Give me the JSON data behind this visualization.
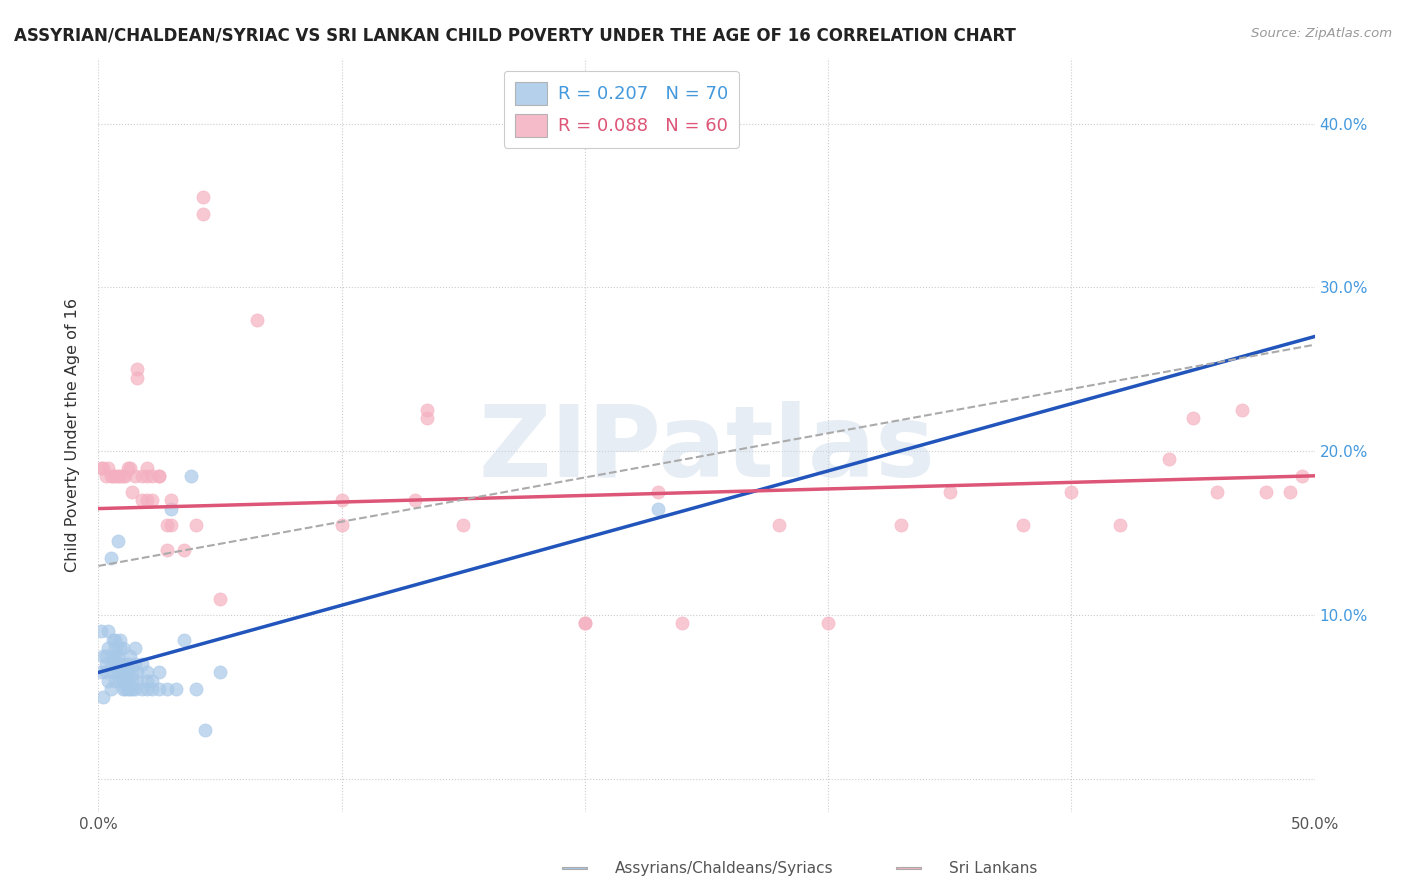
{
  "title": "ASSYRIAN/CHALDEAN/SYRIAC VS SRI LANKAN CHILD POVERTY UNDER THE AGE OF 16 CORRELATION CHART",
  "source": "Source: ZipAtlas.com",
  "ylabel": "Child Poverty Under the Age of 16",
  "xlim": [
    0.0,
    0.5
  ],
  "ylim": [
    -0.02,
    0.44
  ],
  "yticks": [
    0.0,
    0.1,
    0.2,
    0.3,
    0.4
  ],
  "ytick_labels": [
    "",
    "10.0%",
    "20.0%",
    "30.0%",
    "40.0%"
  ],
  "xticks": [
    0.0,
    0.1,
    0.2,
    0.3,
    0.4,
    0.5
  ],
  "xtick_labels": [
    "0.0%",
    "",
    "",
    "",
    "",
    "50.0%"
  ],
  "background_color": "#ffffff",
  "grid_color": "#cccccc",
  "watermark": "ZIPatlas",
  "assyrian_color": "#a8c8e8",
  "srilanka_color": "#f4b0c0",
  "assyrian_line_color": "#2255bb",
  "srilanka_line_color": "#dd5577",
  "dashed_line_color": "#aaaaaa",
  "assyrian_points": [
    [
      0.001,
      0.065
    ],
    [
      0.001,
      0.09
    ],
    [
      0.002,
      0.05
    ],
    [
      0.002,
      0.075
    ],
    [
      0.003,
      0.065
    ],
    [
      0.003,
      0.07
    ],
    [
      0.003,
      0.075
    ],
    [
      0.004,
      0.06
    ],
    [
      0.004,
      0.08
    ],
    [
      0.004,
      0.09
    ],
    [
      0.005,
      0.055
    ],
    [
      0.005,
      0.07
    ],
    [
      0.005,
      0.135
    ],
    [
      0.006,
      0.065
    ],
    [
      0.006,
      0.075
    ],
    [
      0.006,
      0.085
    ],
    [
      0.007,
      0.06
    ],
    [
      0.007,
      0.07
    ],
    [
      0.007,
      0.075
    ],
    [
      0.007,
      0.08
    ],
    [
      0.007,
      0.085
    ],
    [
      0.008,
      0.065
    ],
    [
      0.008,
      0.07
    ],
    [
      0.008,
      0.075
    ],
    [
      0.008,
      0.145
    ],
    [
      0.009,
      0.06
    ],
    [
      0.009,
      0.065
    ],
    [
      0.009,
      0.07
    ],
    [
      0.009,
      0.08
    ],
    [
      0.009,
      0.085
    ],
    [
      0.01,
      0.055
    ],
    [
      0.01,
      0.06
    ],
    [
      0.01,
      0.065
    ],
    [
      0.01,
      0.08
    ],
    [
      0.011,
      0.055
    ],
    [
      0.011,
      0.06
    ],
    [
      0.011,
      0.065
    ],
    [
      0.011,
      0.07
    ],
    [
      0.012,
      0.055
    ],
    [
      0.012,
      0.06
    ],
    [
      0.012,
      0.065
    ],
    [
      0.012,
      0.07
    ],
    [
      0.013,
      0.055
    ],
    [
      0.013,
      0.075
    ],
    [
      0.014,
      0.055
    ],
    [
      0.014,
      0.06
    ],
    [
      0.014,
      0.065
    ],
    [
      0.015,
      0.055
    ],
    [
      0.015,
      0.07
    ],
    [
      0.015,
      0.08
    ],
    [
      0.016,
      0.06
    ],
    [
      0.016,
      0.065
    ],
    [
      0.018,
      0.055
    ],
    [
      0.018,
      0.07
    ],
    [
      0.02,
      0.055
    ],
    [
      0.02,
      0.06
    ],
    [
      0.02,
      0.065
    ],
    [
      0.022,
      0.055
    ],
    [
      0.022,
      0.06
    ],
    [
      0.025,
      0.055
    ],
    [
      0.025,
      0.065
    ],
    [
      0.028,
      0.055
    ],
    [
      0.03,
      0.165
    ],
    [
      0.032,
      0.055
    ],
    [
      0.035,
      0.085
    ],
    [
      0.038,
      0.185
    ],
    [
      0.04,
      0.055
    ],
    [
      0.044,
      0.03
    ],
    [
      0.05,
      0.065
    ],
    [
      0.23,
      0.165
    ]
  ],
  "srilanka_points": [
    [
      0.001,
      0.19
    ],
    [
      0.002,
      0.19
    ],
    [
      0.003,
      0.185
    ],
    [
      0.004,
      0.19
    ],
    [
      0.005,
      0.185
    ],
    [
      0.006,
      0.185
    ],
    [
      0.007,
      0.185
    ],
    [
      0.008,
      0.185
    ],
    [
      0.009,
      0.185
    ],
    [
      0.01,
      0.185
    ],
    [
      0.011,
      0.185
    ],
    [
      0.012,
      0.19
    ],
    [
      0.013,
      0.19
    ],
    [
      0.014,
      0.175
    ],
    [
      0.015,
      0.185
    ],
    [
      0.016,
      0.25
    ],
    [
      0.016,
      0.245
    ],
    [
      0.018,
      0.17
    ],
    [
      0.018,
      0.185
    ],
    [
      0.02,
      0.17
    ],
    [
      0.02,
      0.185
    ],
    [
      0.02,
      0.19
    ],
    [
      0.022,
      0.17
    ],
    [
      0.022,
      0.185
    ],
    [
      0.025,
      0.185
    ],
    [
      0.025,
      0.185
    ],
    [
      0.028,
      0.14
    ],
    [
      0.028,
      0.155
    ],
    [
      0.03,
      0.155
    ],
    [
      0.03,
      0.17
    ],
    [
      0.035,
      0.14
    ],
    [
      0.04,
      0.155
    ],
    [
      0.043,
      0.345
    ],
    [
      0.043,
      0.355
    ],
    [
      0.05,
      0.11
    ],
    [
      0.065,
      0.28
    ],
    [
      0.1,
      0.155
    ],
    [
      0.1,
      0.17
    ],
    [
      0.13,
      0.17
    ],
    [
      0.135,
      0.22
    ],
    [
      0.135,
      0.225
    ],
    [
      0.15,
      0.155
    ],
    [
      0.2,
      0.095
    ],
    [
      0.2,
      0.095
    ],
    [
      0.23,
      0.175
    ],
    [
      0.24,
      0.095
    ],
    [
      0.28,
      0.155
    ],
    [
      0.3,
      0.095
    ],
    [
      0.33,
      0.155
    ],
    [
      0.35,
      0.175
    ],
    [
      0.38,
      0.155
    ],
    [
      0.4,
      0.175
    ],
    [
      0.42,
      0.155
    ],
    [
      0.44,
      0.195
    ],
    [
      0.45,
      0.22
    ],
    [
      0.46,
      0.175
    ],
    [
      0.47,
      0.225
    ],
    [
      0.48,
      0.175
    ],
    [
      0.49,
      0.175
    ],
    [
      0.495,
      0.185
    ]
  ],
  "assyrian_trendline": [
    [
      0.0,
      0.065
    ],
    [
      0.5,
      0.27
    ]
  ],
  "srilanka_trendline": [
    [
      0.0,
      0.165
    ],
    [
      0.5,
      0.185
    ]
  ],
  "dashed_trendline": [
    [
      0.0,
      0.13
    ],
    [
      0.5,
      0.265
    ]
  ]
}
